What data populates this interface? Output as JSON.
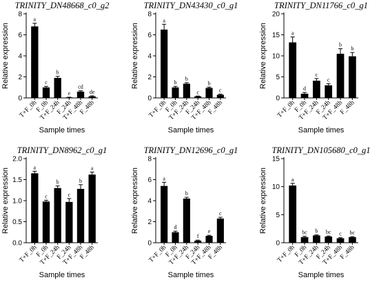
{
  "chart_data": [
    {
      "type": "bar",
      "title": "TRINITY_DN48668_c0_g2",
      "ylabel": "Relative expression",
      "xlabel": "Sample times",
      "ylim": [
        0,
        8
      ],
      "yticks": [
        0,
        2,
        4,
        6,
        8
      ],
      "categories": [
        "T+F_0h",
        "F_0h",
        "T+F_24h",
        "F_24h",
        "T+F_48h",
        "F_48h"
      ],
      "values": [
        6.8,
        1.0,
        1.9,
        0.05,
        0.6,
        0.15
      ],
      "errors": [
        0.3,
        0.1,
        0.15,
        0.02,
        0.08,
        0.05
      ],
      "significance": [
        "a",
        "c",
        "b",
        "e",
        "cd",
        "de"
      ]
    },
    {
      "type": "bar",
      "title": "TRINITY_DN43430_c0_g1",
      "ylabel": "Relative expression",
      "xlabel": "Sample times",
      "ylim": [
        0,
        8
      ],
      "yticks": [
        0,
        2,
        4,
        6,
        8
      ],
      "categories": [
        "T+F_0h",
        "F_0h",
        "T+F_24h",
        "F_24h",
        "T+F_48h",
        "F_48h"
      ],
      "values": [
        6.5,
        1.0,
        1.35,
        0.15,
        0.95,
        0.3
      ],
      "errors": [
        0.5,
        0.1,
        0.1,
        0.03,
        0.08,
        0.06
      ],
      "significance": [
        "a",
        "b",
        "b",
        "c",
        "b",
        "c"
      ]
    },
    {
      "type": "bar",
      "title": "TRINITY_DN11766_c0_g1",
      "ylabel": "Relative expression",
      "xlabel": "Sample times",
      "ylim": [
        0,
        20
      ],
      "yticks": [
        0,
        5,
        10,
        15,
        20
      ],
      "categories": [
        "T+F_0h",
        "F_0h",
        "T+F_24h",
        "F_24h",
        "T+F_48h",
        "F_48h"
      ],
      "values": [
        13.2,
        1.0,
        4.1,
        3.0,
        10.5,
        9.9
      ],
      "errors": [
        1.3,
        0.3,
        0.5,
        0.4,
        1.2,
        0.9
      ],
      "significance": [
        "a",
        "d",
        "c",
        "c",
        "b",
        "b"
      ]
    },
    {
      "type": "bar",
      "title": "TRINITY_DN8962_c0_g1",
      "ylabel": "Relative expression",
      "xlabel": "Sample times",
      "ylim": [
        0.0,
        2.0
      ],
      "yticks": [
        "0.0",
        "0.5",
        "1.0",
        "1.5",
        "2.0"
      ],
      "categories": [
        "T+F_0h",
        "F_0h",
        "T+F_24h",
        "F_24h",
        "T+F_48h",
        "F_48h"
      ],
      "values": [
        1.65,
        0.98,
        1.3,
        0.97,
        1.28,
        1.62
      ],
      "errors": [
        0.05,
        0.03,
        0.05,
        0.08,
        0.1,
        0.06
      ],
      "significance": [
        "a",
        "c",
        "b",
        "c",
        "b",
        "a"
      ]
    },
    {
      "type": "bar",
      "title": "TRINITY_DN12696_c0_g1",
      "ylabel": "Relative expression",
      "xlabel": "Sample times",
      "ylim": [
        0,
        8
      ],
      "yticks": [
        0,
        2,
        4,
        6,
        8
      ],
      "categories": [
        "T+F_0h",
        "F_0h",
        "T+F_24h",
        "F_24h",
        "T+F_48h",
        "F_48h"
      ],
      "values": [
        5.4,
        1.0,
        4.2,
        0.2,
        0.65,
        2.3
      ],
      "errors": [
        0.35,
        0.1,
        0.12,
        0.05,
        0.06,
        0.12
      ],
      "significance": [
        "a",
        "d",
        "b",
        "f",
        "e",
        "c"
      ]
    },
    {
      "type": "bar",
      "title": "TRINITY_DN105680_c0_g1",
      "ylabel": "Relative expression",
      "xlabel": "Sample times",
      "ylim": [
        0,
        15
      ],
      "yticks": [
        0,
        5,
        10,
        15
      ],
      "categories": [
        "T+F_0h",
        "F_0h",
        "T+F_24h",
        "F_24h",
        "T+F_48h",
        "F_48h"
      ],
      "values": [
        10.2,
        1.0,
        1.3,
        1.1,
        0.8,
        1.0
      ],
      "errors": [
        0.4,
        0.15,
        0.1,
        0.1,
        0.1,
        0.1
      ],
      "significance": [
        "a",
        "bc",
        "b",
        "bc",
        "c",
        "bc"
      ]
    }
  ]
}
